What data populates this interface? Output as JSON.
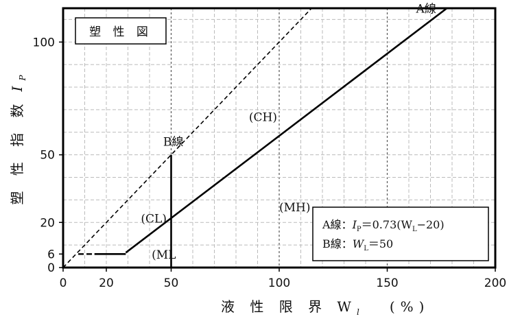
{
  "chart_data": {
    "type": "line",
    "title": "塑 性 図",
    "xlabel": "液 性 限 界  W",
    "xlabel_sub": "l",
    "xlabel_unit": "(%)",
    "ylabel": "塑 性 指 数",
    "ylabel_symbol": "I",
    "ylabel_sub": "P",
    "xlim": [
      0,
      200
    ],
    "ylim": [
      0,
      115
    ],
    "x_ticks": [
      0,
      20,
      50,
      100,
      150,
      200
    ],
    "y_ticks": [
      0,
      6,
      20,
      50,
      100
    ],
    "x_tick_labels": [
      "0",
      "20",
      "50",
      "100",
      "150",
      "200"
    ],
    "y_tick_labels": [
      "0",
      "6",
      "20",
      "50",
      "100"
    ],
    "grid": true,
    "series": [
      {
        "name": "A線",
        "style": "solid",
        "x": [
          29.0,
          185
        ],
        "y": [
          6.6,
          120.4
        ]
      },
      {
        "name": "B線",
        "style": "solid",
        "x": [
          50,
          50
        ],
        "y": [
          0,
          50
        ]
      },
      {
        "name": "",
        "style": "dashed",
        "x": [
          0,
          122
        ],
        "y": [
          0,
          122
        ]
      },
      {
        "name": "",
        "style": "solid",
        "x": [
          14.5,
          29.0
        ],
        "y": [
          6,
          6
        ]
      },
      {
        "name": "",
        "style": "dashed",
        "x": [
          7,
          14.5
        ],
        "y": [
          6,
          6
        ]
      }
    ],
    "region_labels": [
      {
        "text": "(CH)",
        "x": 86,
        "y": 65
      },
      {
        "text": "(CL)",
        "x": 36,
        "y": 20
      },
      {
        "text": "(MH)",
        "x": 100,
        "y": 25
      },
      {
        "text": "(ML",
        "x": 41,
        "y": 4
      }
    ],
    "line_labels": [
      {
        "text": "A線",
        "x": 168,
        "y": 113
      },
      {
        "text": "B線",
        "x": 51,
        "y": 54
      }
    ],
    "equations": [
      {
        "prefix": "A線：",
        "symbol": "I",
        "sub": "P",
        "rest": "＝0.73(W",
        "sub2": "L",
        "tail": "−20)"
      },
      {
        "prefix": "B線：",
        "symbol": "W",
        "sub": "L",
        "rest": "＝50",
        "sub2": "",
        "tail": ""
      }
    ]
  }
}
